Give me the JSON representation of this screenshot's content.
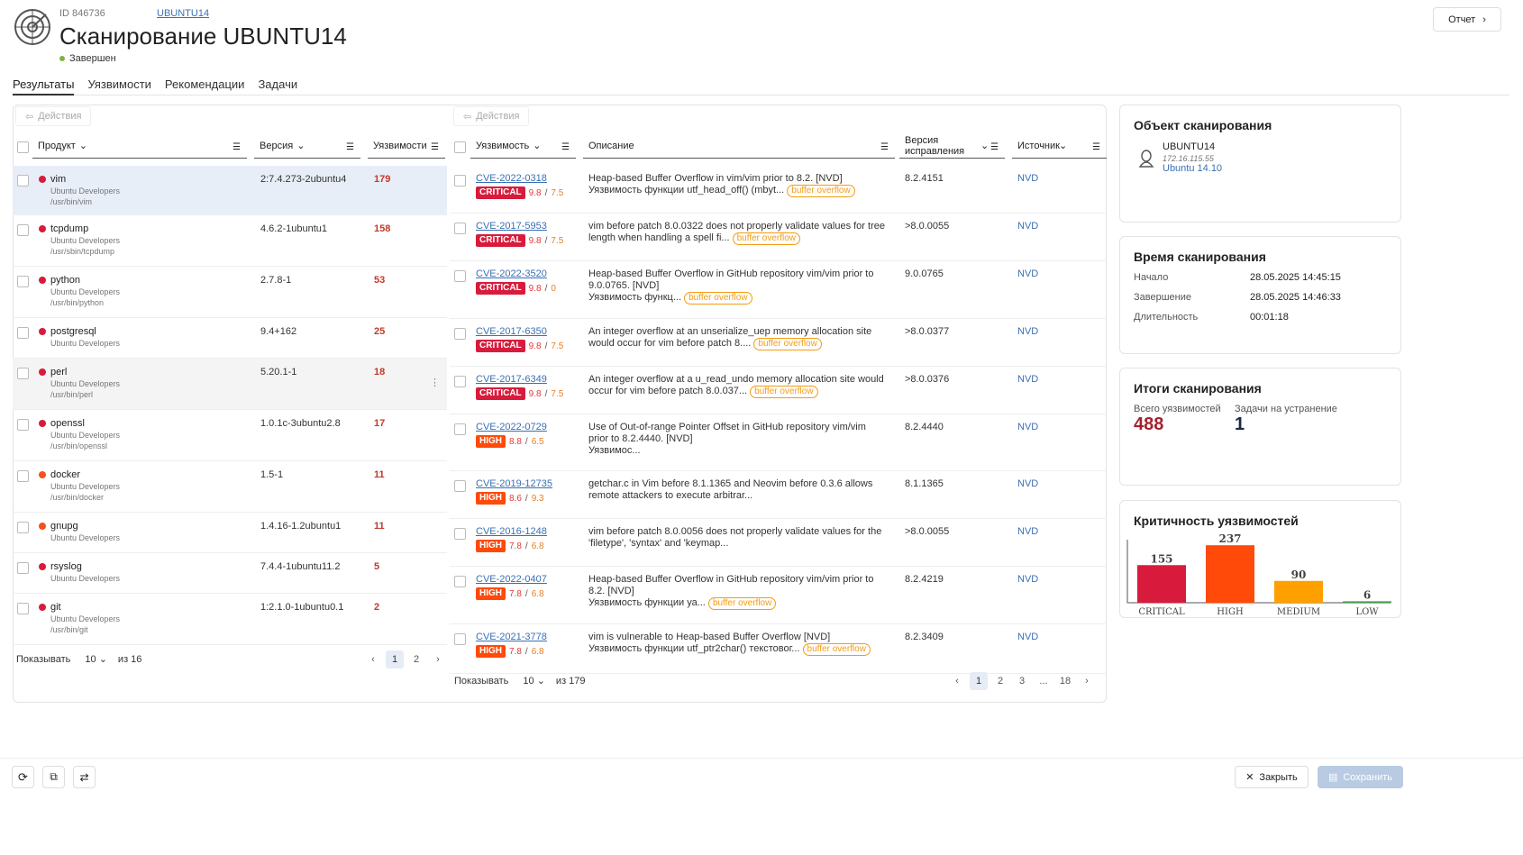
{
  "header": {
    "id_label": "ID 846736",
    "host_link": "UBUNTU14",
    "title": "Сканирование UBUNTU14",
    "status": "Завершен",
    "report_button": "Отчет"
  },
  "tabs": [
    "Результаты",
    "Уязвимости",
    "Рекомендации",
    "Задачи"
  ],
  "products": {
    "actions_label": "Действия",
    "columns": {
      "product": "Продукт",
      "version": "Версия",
      "vulns": "Уязвимости"
    },
    "rows": [
      {
        "name": "vim",
        "vendor": "Ubuntu Developers",
        "path": "/usr/bin/vim",
        "version": "2:7.4.273-2ubuntu4",
        "count": "179",
        "color": "#d81b3c"
      },
      {
        "name": "tcpdump",
        "vendor": "Ubuntu Developers",
        "path": "/usr/sbin/tcpdump",
        "version": "4.6.2-1ubuntu1",
        "count": "158",
        "color": "#d81b3c"
      },
      {
        "name": "python",
        "vendor": "Ubuntu Developers",
        "path": "/usr/bin/python",
        "version": "2.7.8-1",
        "count": "53",
        "color": "#d81b3c"
      },
      {
        "name": "postgresql",
        "vendor": "Ubuntu Developers",
        "path": "",
        "version": "9.4+162",
        "count": "25",
        "color": "#d81b3c"
      },
      {
        "name": "perl",
        "vendor": "Ubuntu Developers",
        "path": "/usr/bin/perl",
        "version": "5.20.1-1",
        "count": "18",
        "color": "#d81b3c"
      },
      {
        "name": "openssl",
        "vendor": "Ubuntu Developers",
        "path": "/usr/bin/openssl",
        "version": "1.0.1c-3ubuntu2.8",
        "count": "17",
        "color": "#d81b3c"
      },
      {
        "name": "docker",
        "vendor": "Ubuntu Developers",
        "path": "/usr/bin/docker",
        "version": "1.5-1",
        "count": "11",
        "color": "#f4511e"
      },
      {
        "name": "gnupg",
        "vendor": "Ubuntu Developers",
        "path": "",
        "version": "1.4.16-1.2ubuntu1",
        "count": "11",
        "color": "#f4511e"
      },
      {
        "name": "rsyslog",
        "vendor": "Ubuntu Developers",
        "path": "",
        "version": "7.4.4-1ubuntu11.2",
        "count": "5",
        "color": "#d81b3c"
      },
      {
        "name": "git",
        "vendor": "Ubuntu Developers",
        "path": "/usr/bin/git",
        "version": "1:2.1.0-1ubuntu0.1",
        "count": "2",
        "color": "#d81b3c"
      }
    ],
    "pager": {
      "show_label": "Показывать",
      "page_size": "10",
      "total": "из 16",
      "pages": [
        "1",
        "2"
      ]
    }
  },
  "vulns": {
    "actions_label": "Действия",
    "columns": {
      "vuln": "Уязвимость",
      "desc": "Описание",
      "fix": "Версия исправления",
      "source": "Источник"
    },
    "rows": [
      {
        "cve": "CVE-2022-0318",
        "sev": "CRITICAL",
        "a": "9.8",
        "b": "7.5",
        "desc": "Heap-based Buffer Overflow in vim/vim prior to 8.2. [NVD]",
        "desc2": "Уязвимость функции utf_head_off() (mbyt...",
        "tag": "buffer overflow",
        "fix": "8.2.4151",
        "src": "NVD"
      },
      {
        "cve": "CVE-2017-5953",
        "sev": "CRITICAL",
        "a": "9.8",
        "b": "7.5",
        "desc": "vim before patch 8.0.0322 does not properly validate values for tree",
        "desc2": "length when handling a spell fi...",
        "tag": "buffer overflow",
        "fix": ">8.0.0055",
        "src": "NVD"
      },
      {
        "cve": "CVE-2022-3520",
        "sev": "CRITICAL",
        "a": "9.8",
        "b": "0",
        "desc": "Heap-based Buffer Overflow in GitHub repository vim/vim prior to",
        "desc1b": "9.0.0765. [NVD]",
        "desc2": "Уязвимость функц...",
        "tag": "buffer overflow",
        "fix": "9.0.0765",
        "src": "NVD"
      },
      {
        "cve": "CVE-2017-6350",
        "sev": "CRITICAL",
        "a": "9.8",
        "b": "7.5",
        "desc": "An integer overflow at an unserialize_uep memory allocation site",
        "desc2": "would occur for vim before patch 8....",
        "tag": "buffer overflow",
        "fix": ">8.0.0377",
        "src": "NVD"
      },
      {
        "cve": "CVE-2017-6349",
        "sev": "CRITICAL",
        "a": "9.8",
        "b": "7.5",
        "desc": "An integer overflow at a u_read_undo memory allocation site would",
        "desc2": "occur for vim before patch 8.0.037...",
        "tag": "buffer overflow",
        "fix": ">8.0.0376",
        "src": "NVD"
      },
      {
        "cve": "CVE-2022-0729",
        "sev": "HIGH",
        "a": "8.8",
        "b": "6.5",
        "desc": "Use of Out-of-range Pointer Offset in GitHub repository vim/vim",
        "desc1b": "prior to 8.2.4440. [NVD]",
        "desc2": "Уязвимос...",
        "tag": "",
        "fix": "8.2.4440",
        "src": "NVD"
      },
      {
        "cve": "CVE-2019-12735",
        "sev": "HIGH",
        "a": "8.6",
        "b": "9.3",
        "desc": "getchar.c in Vim before 8.1.1365 and Neovim before 0.3.6 allows",
        "desc2": "remote attackers to execute arbitrar...",
        "tag": "",
        "fix": "8.1.1365",
        "src": "NVD"
      },
      {
        "cve": "CVE-2016-1248",
        "sev": "HIGH",
        "a": "7.8",
        "b": "6.8",
        "desc": "vim before patch 8.0.0056 does not properly validate values for the",
        "desc2": "'filetype', 'syntax' and 'keymap...",
        "tag": "",
        "fix": ">8.0.0055",
        "src": "NVD"
      },
      {
        "cve": "CVE-2022-0407",
        "sev": "HIGH",
        "a": "7.8",
        "b": "6.8",
        "desc": "Heap-based Buffer Overflow in GitHub repository vim/vim prior to",
        "desc1b": "8.2. [NVD]",
        "desc2": "Уязвимость функции уа...",
        "tag": "buffer overflow",
        "fix": "8.2.4219",
        "src": "NVD"
      },
      {
        "cve": "CVE-2021-3778",
        "sev": "HIGH",
        "a": "7.8",
        "b": "6.8",
        "desc": "vim is vulnerable to Heap-based Buffer Overflow [NVD]",
        "desc2": "Уязвимость функции utf_ptr2char() текстовог...",
        "tag": "buffer overflow",
        "fix": "8.2.3409",
        "src": "NVD"
      }
    ],
    "pager": {
      "show_label": "Показывать",
      "page_size": "10",
      "total": "из 179",
      "pages": [
        "1",
        "2",
        "3",
        "...",
        "18"
      ]
    }
  },
  "scan_object": {
    "title": "Объект сканирования",
    "host": "UBUNTU14",
    "ip": "172.16.115.55",
    "os": "Ubuntu 14.10"
  },
  "scan_time": {
    "title": "Время сканирования",
    "start_label": "Начало",
    "start": "28.05.2025 14:45:15",
    "end_label": "Завершение",
    "end": "28.05.2025 14:46:33",
    "dur_label": "Длительность",
    "dur": "00:01:18"
  },
  "scan_totals": {
    "title": "Итоги сканирования",
    "vulns_label": "Всего уязвимостей",
    "vulns": "488",
    "tasks_label": "Задачи на устранение",
    "tasks": "1"
  },
  "chart_data": {
    "type": "bar",
    "title": "Критичность уязвимостей",
    "categories": [
      "CRITICAL",
      "HIGH",
      "MEDIUM",
      "LOW"
    ],
    "values": [
      155,
      237,
      90,
      6
    ],
    "colors": [
      "#d81b3c",
      "#ff4a0a",
      "#ffa000",
      "#43a047"
    ]
  },
  "footer": {
    "close": "Закрыть",
    "save": "Сохранить"
  },
  "colors": {
    "critical": "#d81b3c",
    "high": "#ff4a0a",
    "accent": "#3a6fb5"
  }
}
